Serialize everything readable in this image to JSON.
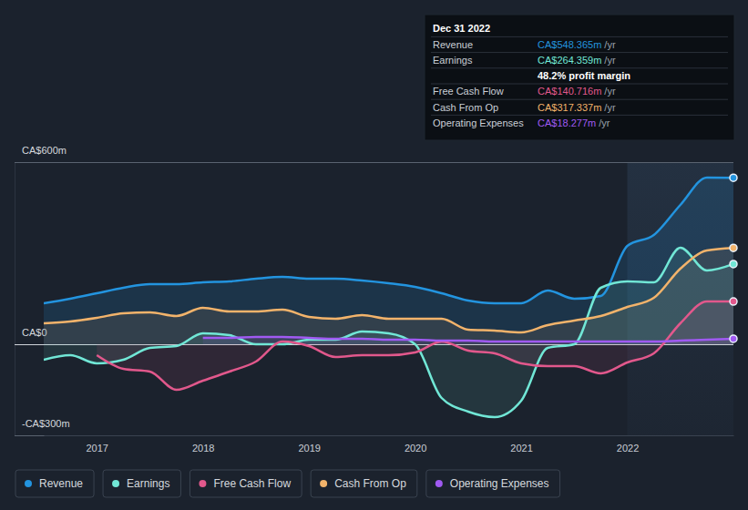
{
  "chart_data": {
    "type": "line",
    "x": [
      2016.5,
      2016.75,
      2017,
      2017.25,
      2017.5,
      2017.75,
      2018,
      2018.25,
      2018.5,
      2018.75,
      2019,
      2019.25,
      2019.5,
      2019.75,
      2020,
      2020.25,
      2020.5,
      2020.75,
      2021,
      2021.25,
      2021.5,
      2021.75,
      2022,
      2022.25,
      2022.5,
      2022.75,
      2023
    ],
    "series": [
      {
        "name": "Revenue",
        "color": "#2394df",
        "values": [
          135,
          150,
          168,
          186,
          198,
          198,
          204,
          207,
          216,
          222,
          216,
          216,
          210,
          201,
          189,
          168,
          144,
          135,
          135,
          177,
          150,
          159,
          324,
          360,
          459,
          549,
          548.365
        ]
      },
      {
        "name": "Earnings",
        "color": "#71e7d6",
        "values": [
          -51,
          -36,
          -63,
          -51,
          -12,
          -6,
          36,
          30,
          0,
          0,
          15,
          15,
          42,
          36,
          0,
          -177,
          -222,
          -240,
          -186,
          -12,
          0,
          186,
          207,
          204,
          318,
          243,
          264.359
        ]
      },
      {
        "name": "Free Cash Flow",
        "color": "#e2588c",
        "values": [
          null,
          null,
          -36,
          -81,
          -90,
          -150,
          -120,
          -90,
          -57,
          9,
          -6,
          -42,
          -36,
          -36,
          -27,
          9,
          -21,
          -30,
          -63,
          -72,
          -72,
          -96,
          -60,
          -30,
          69,
          141,
          140.716
        ]
      },
      {
        "name": "Cash From Op",
        "color": "#f2b36b",
        "values": [
          69,
          75,
          87,
          102,
          105,
          93,
          120,
          108,
          108,
          114,
          90,
          84,
          96,
          84,
          84,
          84,
          48,
          45,
          39,
          63,
          78,
          93,
          123,
          153,
          249,
          309,
          317.337
        ]
      },
      {
        "name": "Operating Expenses",
        "color": "#a05af2",
        "values": [
          null,
          null,
          null,
          null,
          null,
          null,
          21,
          21,
          24,
          24,
          21,
          18,
          18,
          15,
          15,
          12,
          12,
          9,
          9,
          9,
          9,
          9,
          9,
          9,
          12,
          15,
          18.277
        ]
      }
    ],
    "xlim": [
      2016.5,
      2023
    ],
    "xticks": [
      2017,
      2018,
      2019,
      2020,
      2021,
      2022
    ],
    "ylim": [
      -300,
      600
    ],
    "yticks": [
      {
        "value": -300,
        "label": "-CA$300m"
      },
      {
        "value": 0,
        "label": "CA$0"
      },
      {
        "value": 600,
        "label": "CA$600m"
      }
    ],
    "grid": true,
    "legend": "bottom",
    "tooltip": {
      "title": "Dec 31 2022",
      "rows": [
        {
          "label": "Revenue",
          "value": "CA$548.365m",
          "unit": "/yr"
        },
        {
          "label": "Earnings",
          "value": "CA$264.359m",
          "unit": "/yr"
        },
        {
          "value": "48.2% profit margin"
        },
        {
          "label": "Free Cash Flow",
          "value": "CA$140.716m",
          "unit": "/yr"
        },
        {
          "label": "Cash From Op",
          "value": "CA$317.337m",
          "unit": "/yr"
        },
        {
          "label": "Operating Expenses",
          "value": "CA$18.277m",
          "unit": "/yr"
        }
      ]
    }
  }
}
